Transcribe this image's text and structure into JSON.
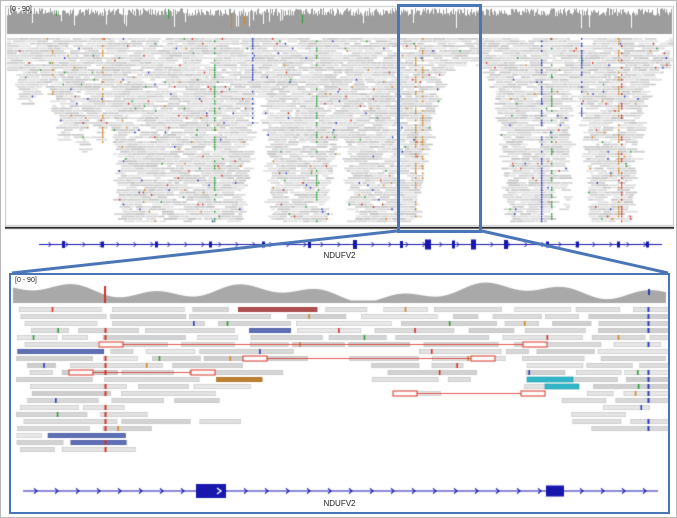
{
  "overview_panel": {
    "coverage_track": {
      "range_label": "[0 - 90]"
    },
    "gene_track": {
      "gene_name": "NDUFV2"
    }
  },
  "zoom_panel": {
    "coverage_track": {
      "range_label": "[0 - 90]"
    },
    "gene_track": {
      "gene_name": "NDUFV2"
    }
  },
  "colors": {
    "read_gray": "#d4d4d4",
    "read_border": "#c2c2c2",
    "coverage_gray": "#9d9d9d",
    "gene_blue": "#1717ae",
    "highlight_blue": "#4a76b8",
    "snp_red": "#d93025",
    "snp_blue": "#2a3cc0",
    "snp_green": "#2e9e3a",
    "snp_orange": "#d2872a",
    "mate_cyan": "#2fb8c9",
    "panel_border": "#c9c9c9"
  }
}
